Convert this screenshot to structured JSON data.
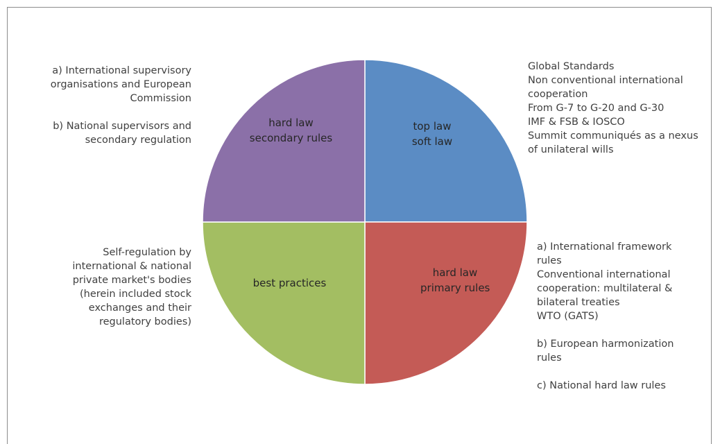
{
  "quadrants": [
    {
      "id": "top-right",
      "label_lines": [
        "top law",
        "soft law"
      ],
      "color": "#5b8cc4"
    },
    {
      "id": "bottom-right",
      "label_lines": [
        "hard law",
        "primary rules"
      ],
      "color": "#c45b56"
    },
    {
      "id": "bottom-left",
      "label_lines": [
        "best practices"
      ],
      "color": "#a3be62"
    },
    {
      "id": "top-left",
      "label_lines": [
        "hard law",
        "secondary rules"
      ],
      "color": "#8b70a8"
    }
  ],
  "notes": {
    "top_left": {
      "a_lines": [
        "a) International supervisory",
        "organisations and European",
        "Commission"
      ],
      "b_lines": [
        "b) National supervisors and",
        "secondary regulation"
      ]
    },
    "top_right": {
      "lines": [
        "Global Standards",
        "Non conventional  international",
        "cooperation",
        "From G-7 to G-20 and G-30",
        "IMF & FSB & IOSCO",
        "Summit communiqués as a nexus",
        "of unilateral wills"
      ]
    },
    "bottom_left": {
      "lines": [
        "Self-regulation by",
        "international & national",
        "private market's bodies",
        "(herein included stock",
        "exchanges and their",
        "regulatory bodies)"
      ]
    },
    "bottom_right": {
      "a_lines": [
        "a) International framework",
        "rules",
        "Conventional international",
        "cooperation: multilateral &",
        "bilateral treaties",
        "WTO (GATS)"
      ],
      "b_lines": [
        "b) European harmonization",
        "rules"
      ],
      "c_lines": [
        "c) National hard law rules"
      ]
    }
  }
}
